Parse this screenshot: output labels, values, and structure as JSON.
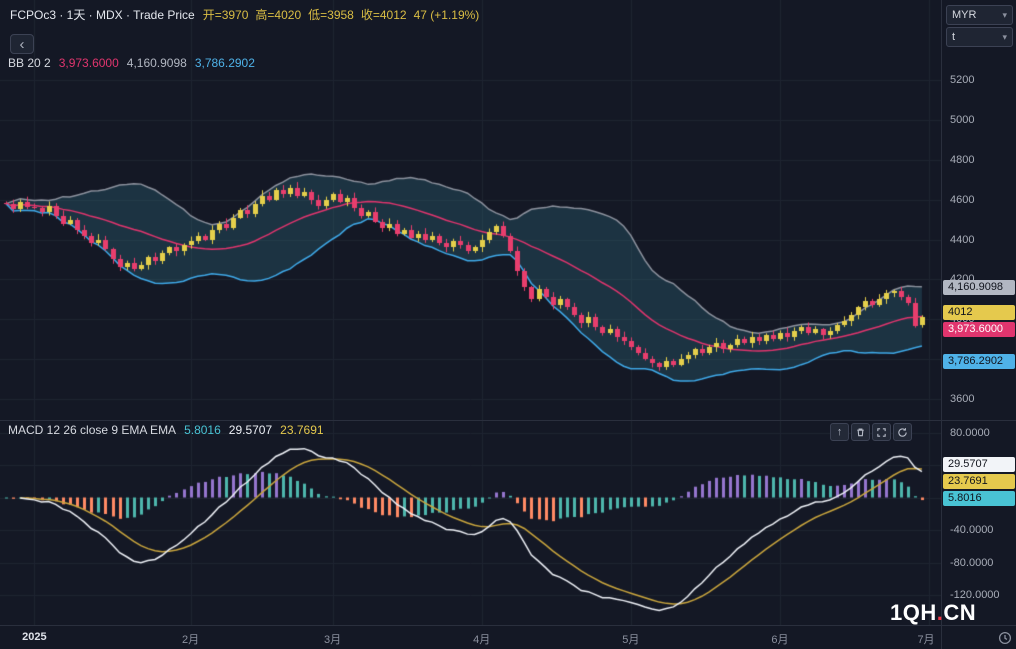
{
  "header": {
    "symbol_line": "FCPOc3 · 1天 · MDX · Trade Price",
    "ohlc_items": [
      "开=3970",
      "高=4020",
      "低=3958",
      "收=4012",
      "47 (+1.19%)"
    ]
  },
  "bb_legend": {
    "title": "BB 20 2",
    "basis": "3,973.6000",
    "upper": "4,160.9098",
    "lower": "3,786.2902"
  },
  "macd_legend": {
    "title": "MACD 12 26 close 9 EMA EMA",
    "hist": "5.8016",
    "macd": "29.5707",
    "signal": "23.7691"
  },
  "currency_selector": {
    "value": "MYR"
  },
  "unit_selector": {
    "value": "t"
  },
  "ui": {
    "back_glyph": "‹",
    "caret_glyph": "▾",
    "up_glyph": "↑"
  },
  "watermark": {
    "part1": "1QH",
    "dot": ".",
    "part2": "CN"
  },
  "price_axis": {
    "ticks": [
      "5200",
      "5000",
      "4800",
      "4600",
      "4400",
      "4200",
      "4000",
      "3800",
      "3600"
    ],
    "badges": [
      {
        "text": "4,160.9098",
        "value": 4160.9098,
        "bg": "#b2b7c2",
        "fg": "#10131c",
        "name": "bb-upper-badge"
      },
      {
        "text": "4012",
        "value": 4012,
        "bg": "#e5c94d",
        "fg": "#10131c",
        "name": "last-price-badge"
      },
      {
        "text": "3,973.6000",
        "value": 3973.6,
        "bg": "#e0356e",
        "fg": "#ffffff",
        "name": "bb-basis-badge"
      },
      {
        "text": "3,786.2902",
        "value": 3786.2902,
        "bg": "#4fb2e8",
        "fg": "#10131c",
        "name": "bb-lower-badge"
      }
    ]
  },
  "macd_axis": {
    "ticks": [
      "80.0000",
      "40.0000",
      "0.0000",
      "-40.0000",
      "-80.0000",
      "-120.0000"
    ],
    "badges": [
      {
        "text": "29.5707",
        "value": 29.5707,
        "bg": "#f2f4f8",
        "fg": "#10131c",
        "name": "macd-line-badge"
      },
      {
        "text": "23.7691",
        "value": 23.7691,
        "bg": "#e5c94d",
        "fg": "#10131c",
        "name": "signal-line-badge"
      },
      {
        "text": "5.8016",
        "value": 5.8016,
        "bg": "#49c3d4",
        "fg": "#10131c",
        "name": "histogram-badge"
      }
    ]
  },
  "time_axis": {
    "labels": [
      {
        "text": "2025",
        "idx": 4,
        "strong": true
      },
      {
        "text": "2月",
        "idx": 26
      },
      {
        "text": "3月",
        "idx": 46
      },
      {
        "text": "4月",
        "idx": 67
      },
      {
        "text": "5月",
        "idx": 88
      },
      {
        "text": "6月",
        "idx": 109
      },
      {
        "text": "7月",
        "idx": 130
      }
    ]
  },
  "colors": {
    "background": "#141825",
    "grid": "#1e2431",
    "separator": "#2a2f3d",
    "up": "#e5cf4b",
    "down": "#e83e6d",
    "bb_upper": "#8d929e",
    "bb_basis": "#e0356e",
    "bb_lower": "#3fa9e8",
    "bb_fill": "rgba(48,110,128,0.32)",
    "macd_line": "#eceff5",
    "signal_line": "#c9a53d",
    "hist_pos_up": "#9575cd",
    "hist_pos_down": "#4db6ac",
    "hist_neg_down": "#ff8a65",
    "hist_neg_up": "#4db6ac"
  },
  "chart_data": [
    {
      "type": "candlestick",
      "title": "FCPOc3 1天 MDX Trade Price",
      "ylim": [
        3600,
        5200
      ],
      "grid": true,
      "indicator": {
        "name": "BB",
        "length": 20,
        "mult": 2,
        "basis": 3973.6,
        "upper": 4160.9098,
        "lower": 3786.2902
      },
      "header_values": {
        "open": 3970,
        "high": 4020,
        "low": 3958,
        "close": 4012,
        "change": 47,
        "change_pct": "+1.19%"
      },
      "last_candle": {
        "open": 3970,
        "high": 4020,
        "low": 3958,
        "close": 4012
      },
      "month_start_indices": [
        4,
        26,
        46,
        67,
        88,
        109,
        130
      ],
      "x_labels": [
        "2025",
        "2月",
        "3月",
        "4月",
        "5月",
        "6月",
        "7月"
      ],
      "closes": [
        4580,
        4555,
        4590,
        4565,
        4560,
        4540,
        4570,
        4520,
        4480,
        4500,
        4450,
        4420,
        4380,
        4400,
        4350,
        4300,
        4260,
        4280,
        4250,
        4270,
        4310,
        4290,
        4330,
        4360,
        4340,
        4370,
        4390,
        4420,
        4400,
        4450,
        4480,
        4460,
        4510,
        4550,
        4530,
        4580,
        4620,
        4600,
        4650,
        4630,
        4660,
        4620,
        4640,
        4600,
        4570,
        4600,
        4630,
        4590,
        4610,
        4560,
        4520,
        4540,
        4490,
        4460,
        4480,
        4430,
        4450,
        4410,
        4430,
        4400,
        4420,
        4380,
        4360,
        4390,
        4370,
        4340,
        4360,
        4400,
        4440,
        4470,
        4420,
        4340,
        4240,
        4160,
        4100,
        4150,
        4110,
        4070,
        4100,
        4060,
        4020,
        3980,
        4010,
        3960,
        3930,
        3950,
        3910,
        3890,
        3860,
        3830,
        3800,
        3780,
        3760,
        3790,
        3770,
        3800,
        3820,
        3850,
        3830,
        3860,
        3880,
        3850,
        3870,
        3900,
        3880,
        3910,
        3890,
        3920,
        3900,
        3930,
        3910,
        3940,
        3960,
        3930,
        3950,
        3920,
        3940,
        3970,
        3990,
        4020,
        4060,
        4090,
        4070,
        4100,
        4130,
        4140,
        4110,
        4080,
        3965,
        4012
      ]
    },
    {
      "type": "bar",
      "title": "MACD 12 26 close 9 EMA EMA",
      "ylim": [
        -120,
        80
      ],
      "grid": true,
      "derived_from": "closes of chart_data[0] via EMA12-EMA26, signal EMA9",
      "current_values": {
        "histogram": 5.8016,
        "macd": 29.5707,
        "signal": 23.7691
      }
    }
  ]
}
